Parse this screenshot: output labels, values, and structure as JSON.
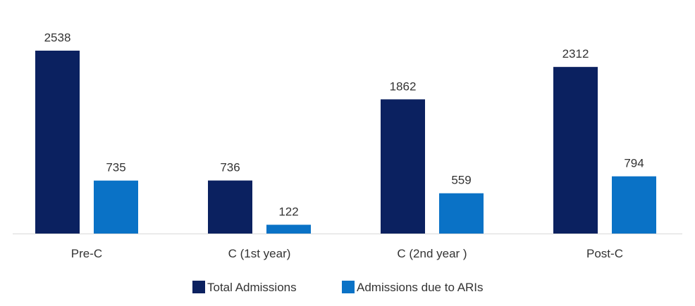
{
  "chart_data": {
    "type": "bar",
    "categories": [
      "Pre-C",
      "C (1st year)",
      "C (2nd year )",
      "Post-C"
    ],
    "series": [
      {
        "name": "Total Admissions",
        "values": [
          2538,
          736,
          1862,
          2312
        ],
        "color": "#0b2160"
      },
      {
        "name": "Admissions due to ARIs",
        "values": [
          735,
          122,
          559,
          794
        ],
        "color": "#0a72c6"
      }
    ],
    "title": "",
    "xlabel": "",
    "ylabel": "",
    "ylim": [
      0,
      2538
    ],
    "grid": false,
    "legend_position": "bottom",
    "data_labels": true
  }
}
